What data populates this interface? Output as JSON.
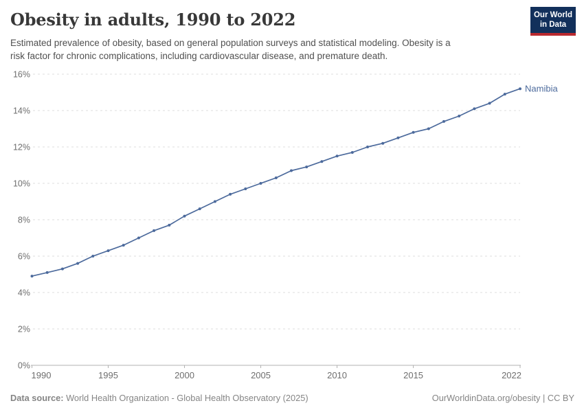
{
  "header": {
    "title": "Obesity in adults, 1990 to 2022",
    "subtitle_line1": "Estimated prevalence of obesity, based on general population surveys and statistical modeling. Obesity is a",
    "subtitle_line2": "risk factor for chronic complications, including cardiovascular disease, and premature death.",
    "logo": {
      "line1": "Our World",
      "line2": "in Data"
    }
  },
  "colors": {
    "brand_navy": "#12305b",
    "brand_red": "#b9292f",
    "series_blue": "#4c6a9c",
    "gridline": "#dedede",
    "axis": "#b0b0b0",
    "tick_text": "#6e6e6e",
    "footer_text": "#858585"
  },
  "chart_data": {
    "type": "line",
    "title": "Obesity in adults, 1990 to 2022",
    "xlabel": "",
    "ylabel": "",
    "xlim": [
      1990,
      2022
    ],
    "ylim": [
      0,
      16
    ],
    "grid": "horizontal-dashed",
    "legend_position": "end-of-line-label",
    "x_ticks": [
      {
        "v": 1990,
        "label": "1990"
      },
      {
        "v": 1995,
        "label": "1995"
      },
      {
        "v": 2000,
        "label": "2000"
      },
      {
        "v": 2005,
        "label": "2005"
      },
      {
        "v": 2010,
        "label": "2010"
      },
      {
        "v": 2015,
        "label": "2015"
      },
      {
        "v": 2022,
        "label": "2022"
      }
    ],
    "y_ticks": [
      {
        "v": 0,
        "label": "0%"
      },
      {
        "v": 2,
        "label": "2%"
      },
      {
        "v": 4,
        "label": "4%"
      },
      {
        "v": 6,
        "label": "6%"
      },
      {
        "v": 8,
        "label": "8%"
      },
      {
        "v": 10,
        "label": "10%"
      },
      {
        "v": 12,
        "label": "12%"
      },
      {
        "v": 14,
        "label": "14%"
      },
      {
        "v": 16,
        "label": "16%"
      }
    ],
    "series": [
      {
        "name": "Namibia",
        "color": "#4c6a9c",
        "x": [
          1990,
          1991,
          1992,
          1993,
          1994,
          1995,
          1996,
          1997,
          1998,
          1999,
          2000,
          2001,
          2002,
          2003,
          2004,
          2005,
          2006,
          2007,
          2008,
          2009,
          2010,
          2011,
          2012,
          2013,
          2014,
          2015,
          2016,
          2017,
          2018,
          2019,
          2020,
          2021,
          2022
        ],
        "values": [
          4.9,
          5.1,
          5.3,
          5.6,
          6.0,
          6.3,
          6.6,
          7.0,
          7.4,
          7.7,
          8.2,
          8.6,
          9.0,
          9.4,
          9.7,
          10.0,
          10.3,
          10.7,
          10.9,
          11.2,
          11.5,
          11.7,
          12.0,
          12.2,
          12.5,
          12.8,
          13.0,
          13.4,
          13.7,
          14.1,
          14.4,
          14.9,
          15.2
        ]
      }
    ]
  },
  "footer": {
    "datasource_label": "Data source:",
    "datasource_text": " World Health Organization - Global Health Observatory (2025)",
    "right_text": "OurWorldinData.org/obesity | CC BY"
  }
}
